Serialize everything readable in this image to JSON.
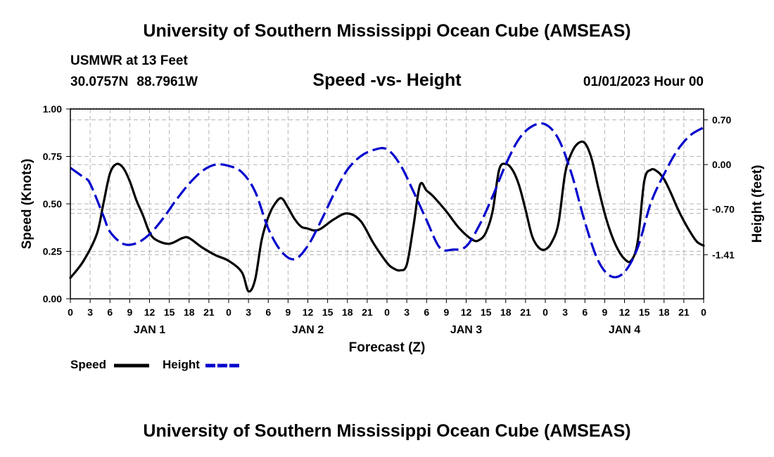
{
  "header": {
    "main_title": "University of Southern Mississippi Ocean Cube (AMSEAS)",
    "station": "USMWR at 13 Feet",
    "latitude": "30.0757N",
    "longitude": "88.7961W",
    "subtitle": "Speed -vs- Height",
    "datetime": "01/01/2023 Hour 00"
  },
  "footer": {
    "main_title": "University of Southern Mississippi Ocean Cube (AMSEAS)"
  },
  "legend": {
    "speed_label": "Speed",
    "height_label": "Height"
  },
  "colors": {
    "speed": "#000000",
    "height": "#0000cc",
    "grid": "#b4b4b4"
  },
  "chart_data": {
    "type": "line",
    "title": "Speed -vs- Height",
    "xlabel": "Forecast (Z)",
    "ylabel": "Speed (Knots)",
    "y2label": "Height (feet)",
    "xlim": [
      0,
      96
    ],
    "ylim": [
      0,
      1.0
    ],
    "y2lim": [
      -2.1,
      0.87
    ],
    "grid": true,
    "legend_position": "bottom-left",
    "x_ticks": [
      0,
      3,
      6,
      9,
      12,
      15,
      18,
      21,
      24,
      27,
      30,
      33,
      36,
      39,
      42,
      45,
      48,
      51,
      54,
      57,
      60,
      63,
      66,
      69,
      72,
      75,
      78,
      81,
      84,
      87,
      90,
      93,
      96
    ],
    "x_tick_labels": [
      "0",
      "3",
      "6",
      "9",
      "12",
      "15",
      "18",
      "21",
      "0",
      "3",
      "6",
      "9",
      "12",
      "15",
      "18",
      "21",
      "0",
      "3",
      "6",
      "9",
      "12",
      "15",
      "18",
      "21",
      "0",
      "3",
      "6",
      "9",
      "12",
      "15",
      "18",
      "21",
      "0"
    ],
    "day_labels": [
      {
        "x": 12,
        "label": "JAN 1"
      },
      {
        "x": 36,
        "label": "JAN 2"
      },
      {
        "x": 60,
        "label": "JAN 3"
      },
      {
        "x": 84,
        "label": "JAN 4"
      }
    ],
    "y_ticks": [
      0,
      0.25,
      0.5,
      0.75,
      1.0
    ],
    "y_tick_labels": [
      "0.00",
      "0.25",
      "0.50",
      "0.75",
      "1.00"
    ],
    "y_grid_extra": [
      0.45
    ],
    "y2_ticks": [
      0.7,
      0.0,
      -0.7,
      -1.41
    ],
    "y2_tick_labels": [
      "0.70",
      "0.00",
      "-0.70",
      "-1.41"
    ],
    "series": [
      {
        "name": "Speed",
        "axis": "left",
        "color": "#000000",
        "dash": "solid",
        "x": [
          0,
          2,
          4,
          5,
          6,
          7,
          8,
          9,
          10,
          11,
          12,
          13,
          15,
          17,
          18,
          20,
          22,
          24,
          26,
          27,
          28,
          29,
          30,
          31,
          32,
          33,
          34,
          35,
          36,
          37,
          38,
          40,
          42,
          44,
          46,
          48,
          49,
          50,
          51,
          52,
          53,
          54,
          55,
          57,
          59,
          61,
          62,
          63,
          64,
          65,
          66,
          67,
          68,
          69,
          70,
          71,
          72,
          73,
          74,
          75,
          76,
          77,
          78,
          79,
          80,
          81,
          82,
          83,
          84,
          85,
          86,
          87,
          88,
          89,
          90,
          91,
          92,
          93,
          94,
          95,
          96
        ],
        "values": [
          0.11,
          0.2,
          0.34,
          0.5,
          0.66,
          0.71,
          0.69,
          0.62,
          0.52,
          0.44,
          0.35,
          0.31,
          0.29,
          0.32,
          0.32,
          0.27,
          0.23,
          0.2,
          0.14,
          0.04,
          0.1,
          0.31,
          0.43,
          0.5,
          0.53,
          0.48,
          0.42,
          0.38,
          0.37,
          0.36,
          0.37,
          0.42,
          0.45,
          0.41,
          0.29,
          0.19,
          0.16,
          0.15,
          0.18,
          0.38,
          0.6,
          0.57,
          0.54,
          0.46,
          0.37,
          0.31,
          0.31,
          0.35,
          0.46,
          0.68,
          0.71,
          0.68,
          0.6,
          0.47,
          0.33,
          0.27,
          0.26,
          0.3,
          0.4,
          0.66,
          0.77,
          0.82,
          0.82,
          0.74,
          0.59,
          0.45,
          0.34,
          0.26,
          0.21,
          0.2,
          0.3,
          0.62,
          0.68,
          0.67,
          0.63,
          0.56,
          0.48,
          0.41,
          0.35,
          0.3,
          0.28
        ]
      },
      {
        "name": "Height",
        "axis": "right",
        "color": "#0000cc",
        "dash": "dashed",
        "x": [
          0,
          2,
          3,
          5,
          6,
          8,
          10,
          12,
          14,
          16,
          18,
          20,
          22,
          24,
          26,
          28,
          30,
          32,
          34,
          36,
          38,
          40,
          42,
          44,
          46,
          48,
          50,
          52,
          54,
          56,
          58,
          60,
          62,
          64,
          66,
          68,
          70,
          72,
          74,
          76,
          78,
          80,
          82,
          84,
          86,
          88,
          90,
          92,
          94,
          96
        ],
        "values": [
          -0.05,
          -0.2,
          -0.3,
          -0.8,
          -1.05,
          -1.24,
          -1.23,
          -1.09,
          -0.85,
          -0.56,
          -0.3,
          -0.1,
          0.0,
          -0.02,
          -0.12,
          -0.42,
          -1.0,
          -1.36,
          -1.48,
          -1.27,
          -0.88,
          -0.45,
          -0.08,
          0.13,
          0.23,
          0.24,
          0.0,
          -0.42,
          -0.87,
          -1.3,
          -1.33,
          -1.28,
          -0.95,
          -0.5,
          0.0,
          0.4,
          0.6,
          0.63,
          0.4,
          -0.15,
          -0.9,
          -1.5,
          -1.75,
          -1.68,
          -1.3,
          -0.6,
          -0.15,
          0.22,
          0.46,
          0.58
        ]
      }
    ]
  }
}
